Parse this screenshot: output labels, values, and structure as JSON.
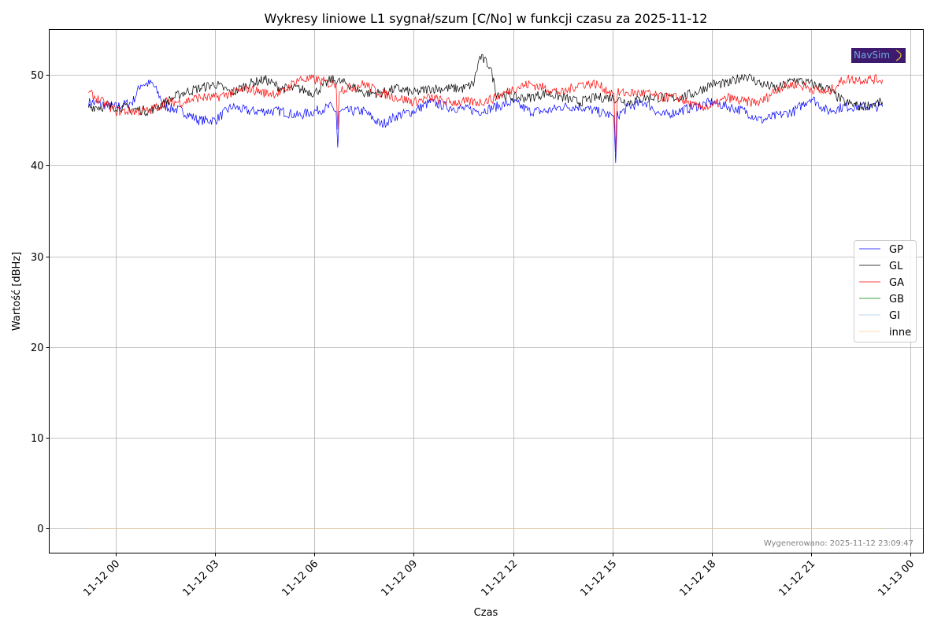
{
  "chart_data": {
    "type": "line",
    "title": "Wykresy liniowe L1 sygnał/szum [C/No] w funkcji czasu za 2025-11-12",
    "xlabel": "Czas",
    "ylabel": "Wartość [dBHz]",
    "x_unit": "hours since 2025-11-12 00:00",
    "xlim": [
      -2.02,
      24.4
    ],
    "ylim": [
      -2.7,
      55.0
    ],
    "grid": true,
    "legend_position": "center-right",
    "x_ticks": [
      {
        "value": 0,
        "label": "11-12 00"
      },
      {
        "value": 3,
        "label": "11-12 03"
      },
      {
        "value": 6,
        "label": "11-12 06"
      },
      {
        "value": 9,
        "label": "11-12 09"
      },
      {
        "value": 12,
        "label": "11-12 12"
      },
      {
        "value": 15,
        "label": "11-12 15"
      },
      {
        "value": 18,
        "label": "11-12 18"
      },
      {
        "value": 21,
        "label": "11-12 21"
      },
      {
        "value": 24,
        "label": "11-13 00"
      }
    ],
    "y_ticks": [
      {
        "value": 0,
        "label": "0"
      },
      {
        "value": 10,
        "label": "10"
      },
      {
        "value": 20,
        "label": "20"
      },
      {
        "value": 30,
        "label": "30"
      },
      {
        "value": 40,
        "label": "40"
      },
      {
        "value": 50,
        "label": "50"
      }
    ],
    "series": [
      {
        "name": "GP",
        "color": "#0000ff",
        "points": [
          [
            -0.83,
            47
          ],
          [
            0,
            46.5
          ],
          [
            0.5,
            47
          ],
          [
            0.75,
            49
          ],
          [
            1.1,
            49
          ],
          [
            1.5,
            46.5
          ],
          [
            2,
            46
          ],
          [
            2.5,
            45
          ],
          [
            3,
            45
          ],
          [
            3.5,
            46.5
          ],
          [
            4,
            46
          ],
          [
            5,
            46
          ],
          [
            5.5,
            45.5
          ],
          [
            6,
            46
          ],
          [
            6.5,
            46.5
          ],
          [
            6.65,
            46
          ],
          [
            6.7,
            42
          ],
          [
            6.75,
            46
          ],
          [
            7,
            46
          ],
          [
            7.5,
            46
          ],
          [
            8,
            44.5
          ],
          [
            8.5,
            45.5
          ],
          [
            9,
            46
          ],
          [
            9.5,
            47
          ],
          [
            10,
            46.5
          ],
          [
            11,
            46
          ],
          [
            12,
            47
          ],
          [
            12.5,
            46
          ],
          [
            13,
            46
          ],
          [
            13.5,
            46.5
          ],
          [
            14,
            46.5
          ],
          [
            14.5,
            46
          ],
          [
            15,
            45.5
          ],
          [
            15.05,
            45.5
          ],
          [
            15.1,
            40.3
          ],
          [
            15.15,
            45.5
          ],
          [
            15.5,
            46.5
          ],
          [
            16,
            47
          ],
          [
            16.5,
            45.5
          ],
          [
            17,
            46
          ],
          [
            17.5,
            46.5
          ],
          [
            18,
            47
          ],
          [
            18.5,
            46.5
          ],
          [
            19,
            46
          ],
          [
            19.5,
            45
          ],
          [
            20,
            45.5
          ],
          [
            20.5,
            46
          ],
          [
            21,
            47.5
          ],
          [
            21.5,
            46
          ],
          [
            22,
            46.5
          ],
          [
            22.5,
            46.5
          ],
          [
            23.17,
            46.5
          ]
        ]
      },
      {
        "name": "GL",
        "color": "#000000",
        "points": [
          [
            -0.83,
            46.5
          ],
          [
            0,
            46.5
          ],
          [
            1,
            46
          ],
          [
            1.5,
            47
          ],
          [
            2,
            48
          ],
          [
            2.5,
            48.5
          ],
          [
            3,
            49
          ],
          [
            3.5,
            48
          ],
          [
            4,
            49
          ],
          [
            4.5,
            49.5
          ],
          [
            5,
            48.5
          ],
          [
            5.5,
            48.5
          ],
          [
            6,
            48
          ],
          [
            6.5,
            49.5
          ],
          [
            7,
            49
          ],
          [
            7.5,
            48
          ],
          [
            8,
            48
          ],
          [
            8.5,
            48.5
          ],
          [
            9,
            48
          ],
          [
            9.5,
            48.5
          ],
          [
            10,
            48.5
          ],
          [
            10.5,
            48.5
          ],
          [
            10.8,
            49
          ],
          [
            11,
            52
          ],
          [
            11.3,
            51
          ],
          [
            11.5,
            48
          ],
          [
            12,
            47.5
          ],
          [
            12.5,
            47.5
          ],
          [
            13,
            48
          ],
          [
            13.5,
            47.5
          ],
          [
            14,
            47
          ],
          [
            14.5,
            47.5
          ],
          [
            15,
            47.5
          ],
          [
            15.5,
            47
          ],
          [
            16,
            47.5
          ],
          [
            16.5,
            47.5
          ],
          [
            17,
            47.5
          ],
          [
            17.5,
            48
          ],
          [
            18,
            49
          ],
          [
            18.5,
            49
          ],
          [
            19,
            50
          ],
          [
            19.5,
            49
          ],
          [
            20,
            48.5
          ],
          [
            20.5,
            49.5
          ],
          [
            21,
            49
          ],
          [
            21.5,
            48.5
          ],
          [
            22,
            47
          ],
          [
            22.5,
            46.5
          ],
          [
            23.17,
            47
          ]
        ]
      },
      {
        "name": "GA",
        "color": "#ff0000",
        "points": [
          [
            -0.83,
            48
          ],
          [
            0,
            46
          ],
          [
            0.5,
            46
          ],
          [
            1,
            46
          ],
          [
            1.5,
            47
          ],
          [
            2,
            47
          ],
          [
            2.5,
            47.5
          ],
          [
            3,
            47.5
          ],
          [
            3.5,
            48
          ],
          [
            4,
            48.5
          ],
          [
            4.5,
            48
          ],
          [
            5,
            48
          ],
          [
            5.5,
            49.5
          ],
          [
            6,
            49.5
          ],
          [
            6.5,
            49
          ],
          [
            6.65,
            49
          ],
          [
            6.7,
            44
          ],
          [
            6.75,
            48.5
          ],
          [
            7,
            48.5
          ],
          [
            7.5,
            49
          ],
          [
            8,
            48
          ],
          [
            8.5,
            47.5
          ],
          [
            9,
            47
          ],
          [
            9.5,
            47.5
          ],
          [
            10,
            47
          ],
          [
            10.5,
            47
          ],
          [
            11,
            47
          ],
          [
            11.5,
            47.5
          ],
          [
            12,
            48.5
          ],
          [
            12.5,
            49
          ],
          [
            13,
            48.5
          ],
          [
            13.5,
            48
          ],
          [
            14,
            49
          ],
          [
            14.5,
            49
          ],
          [
            15,
            48
          ],
          [
            15.05,
            48
          ],
          [
            15.1,
            41.5
          ],
          [
            15.15,
            48
          ],
          [
            15.5,
            48
          ],
          [
            16,
            48
          ],
          [
            16.5,
            47.5
          ],
          [
            17,
            47.5
          ],
          [
            17.5,
            46.5
          ],
          [
            18,
            46.5
          ],
          [
            18.5,
            47.5
          ],
          [
            19,
            47
          ],
          [
            19.5,
            47
          ],
          [
            20,
            48.5
          ],
          [
            20.5,
            49
          ],
          [
            21,
            48.5
          ],
          [
            21.5,
            48
          ],
          [
            22,
            49.5
          ],
          [
            22.5,
            49.5
          ],
          [
            23.17,
            49.5
          ]
        ]
      },
      {
        "name": "GB",
        "color": "#008000",
        "points": [
          [
            -0.83,
            0
          ],
          [
            23.17,
            0
          ]
        ]
      },
      {
        "name": "GI",
        "color": "#a6c8ea",
        "points": [
          [
            -0.83,
            0
          ],
          [
            23.17,
            0
          ]
        ]
      },
      {
        "name": "inne",
        "color": "#ffcf99",
        "points": [
          [
            -0.83,
            0
          ],
          [
            23.17,
            0
          ]
        ]
      }
    ],
    "annotation": "Wygenerowano: 2025-11-12 23:09:47",
    "logo_text": "NavSim"
  }
}
